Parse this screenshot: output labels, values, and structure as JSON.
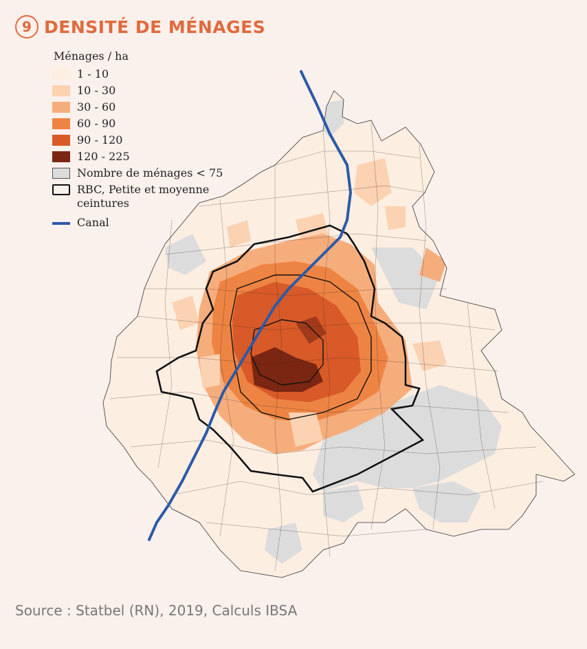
{
  "title": {
    "number": "9",
    "text": "DENSITÉ DE MÉNAGES"
  },
  "legend": {
    "title": "Ménages / ha",
    "classes": [
      {
        "label": "1 - 10",
        "color": "#fdeee2"
      },
      {
        "label": "10 - 30",
        "color": "#fbd2b2"
      },
      {
        "label": "30 - 60",
        "color": "#f6ad7c"
      },
      {
        "label": "60 - 90",
        "color": "#ee8443"
      },
      {
        "label": "90 - 120",
        "color": "#d85a28"
      },
      {
        "label": "120 - 225",
        "color": "#7a2612"
      }
    ],
    "few_households": {
      "label": "Nombre de ménages < 75",
      "color": "#dcdcdc"
    },
    "boundary": {
      "label": "RBC, Petite et moyenne ceintures"
    },
    "canal": {
      "label": "Canal",
      "color": "#2b5aa8"
    }
  },
  "source": "Source : Statbel (RN), 2019, Calculs IBSA"
}
